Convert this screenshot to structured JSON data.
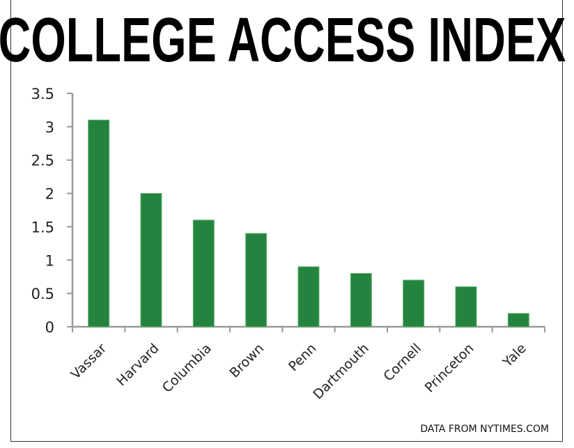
{
  "chart_data": {
    "type": "bar",
    "title": "COLLEGE ACCESS INDEX",
    "categories": [
      "Vassar",
      "Harvard",
      "Columbia",
      "Brown",
      "Penn",
      "Dartmouth",
      "Cornell",
      "Princeton",
      "Yale"
    ],
    "values": [
      3.1,
      2.0,
      1.6,
      1.4,
      0.9,
      0.8,
      0.7,
      0.6,
      0.2
    ],
    "xlabel": "",
    "ylabel": "",
    "ylim": [
      0,
      3.5
    ],
    "yticks": [
      "0",
      "0.5",
      "1",
      "1.5",
      "2",
      "2.5",
      "3",
      "3.5"
    ],
    "grid": false,
    "legend": "none",
    "bar_color": "#24843f",
    "source": "DATA FROM NYTIMES.COM"
  }
}
